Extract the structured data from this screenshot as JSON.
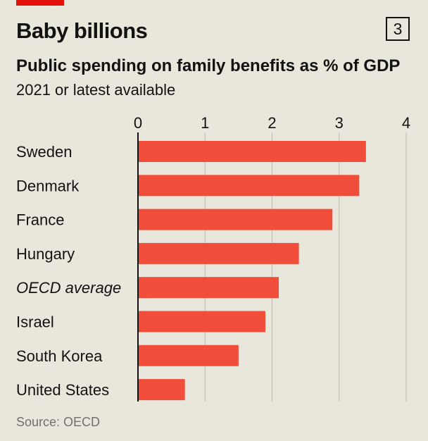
{
  "header": {
    "title": "Baby billions",
    "badge": "3",
    "subtitle": "Public spending on family benefits as % of GDP",
    "subtitle2": "2021 or latest available"
  },
  "footer": {
    "source": "Source: OECD"
  },
  "colors": {
    "bar": "#f04e3a",
    "accent": "#e3120b",
    "grid": "#bdbab2",
    "axis": "#121212",
    "background": "#e9e6dc"
  },
  "chart_data": {
    "type": "bar",
    "orientation": "horizontal",
    "categories": [
      "Sweden",
      "Denmark",
      "France",
      "Hungary",
      "OECD average",
      "Israel",
      "South Korea",
      "United States"
    ],
    "values": [
      3.4,
      3.3,
      2.9,
      2.4,
      2.1,
      1.9,
      1.5,
      0.7
    ],
    "italic_categories": [
      "OECD average"
    ],
    "xlim": [
      0,
      4
    ],
    "xticks": [
      "0",
      "1",
      "2",
      "3",
      "4"
    ],
    "grid": true,
    "title": "Baby billions",
    "subtitle": "Public spending on family benefits as % of GDP"
  }
}
